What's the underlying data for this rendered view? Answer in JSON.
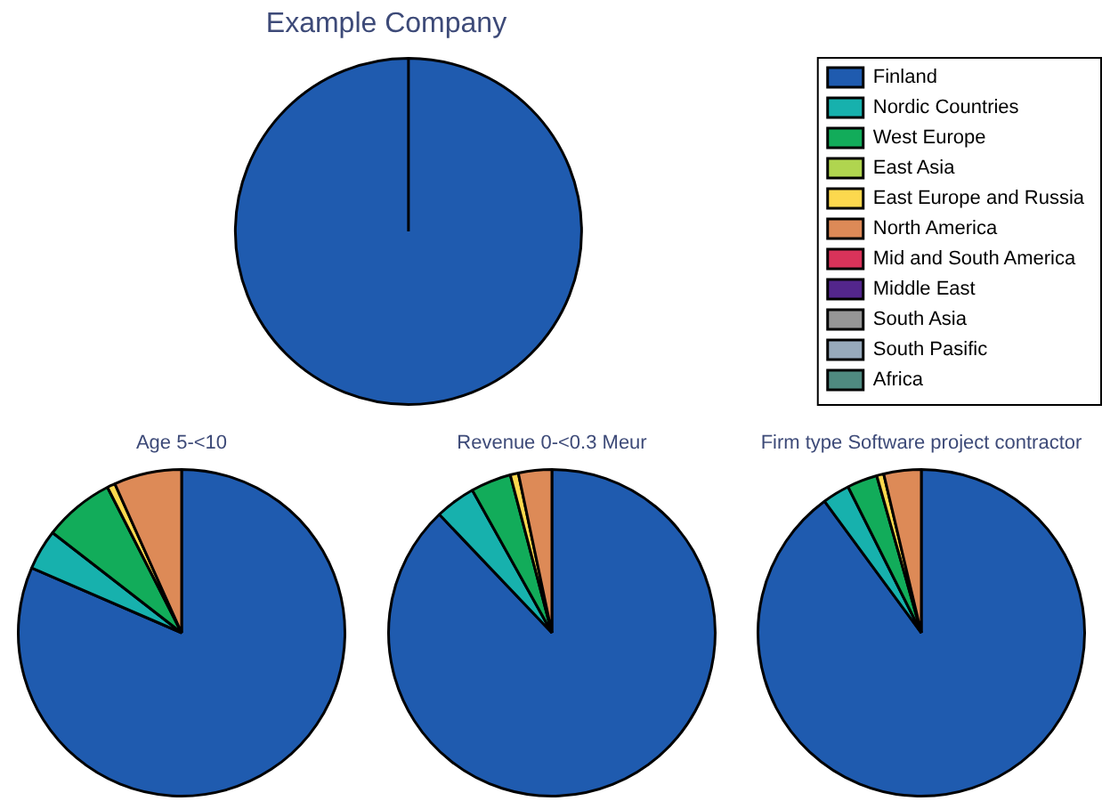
{
  "chart_data": [
    {
      "type": "pie",
      "title": "Example Company",
      "legend": "top right",
      "categories": [
        "Finland",
        "Nordic Countries",
        "West Europe",
        "East Asia",
        "East Europe and Russia",
        "North America",
        "Mid and South America",
        "Middle East",
        "South Asia",
        "South Pasific",
        "Africa"
      ],
      "values": [
        100,
        0,
        0,
        0,
        0,
        0,
        0,
        0,
        0,
        0,
        0
      ],
      "colors": [
        "#1f5baf",
        "#17b1ad",
        "#12ac5a",
        "#b0d54f",
        "#fcd84e",
        "#dd8a57",
        "#d9335a",
        "#53268c",
        "#969696",
        "#97a9bb",
        "#4f8a80"
      ]
    },
    {
      "type": "pie",
      "title": "Age 5-<10",
      "categories": [
        null,
        null,
        null,
        null,
        null,
        null,
        null,
        null,
        null,
        null,
        null
      ],
      "values": [
        81.5,
        4,
        7,
        null,
        0.8,
        6.7,
        0,
        0,
        0,
        0,
        0
      ],
      "colors": [
        "#1f5baf",
        "#17b1ad",
        "#12ac5a",
        "#b0d54f",
        "#fcd84e",
        "#dd8a57",
        "#d9335a",
        "#53268c",
        "#969696",
        "#97a9bb",
        "#4f8a80"
      ]
    },
    {
      "type": "pie",
      "title": "Revenue 0-<0.3 Meur",
      "categories": [
        null,
        null,
        null,
        null,
        null,
        null,
        null,
        null,
        null,
        null,
        null
      ],
      "values": [
        87.9,
        4,
        4,
        null,
        0.8,
        3.3,
        0,
        0,
        0,
        0,
        0
      ],
      "colors": [
        "#1f5baf",
        "#17b1ad",
        "#12ac5a",
        "#b0d54f",
        "#fcd84e",
        "#dd8a57",
        "#d9335a",
        "#53268c",
        "#969696",
        "#97a9bb",
        "#4f8a80"
      ]
    },
    {
      "type": "pie",
      "title": "Firm type Software project contractor",
      "categories": [
        null,
        null,
        null,
        null,
        null,
        null,
        null,
        null,
        null,
        null,
        null
      ],
      "values": [
        89.9,
        2.7,
        3,
        null,
        0.7,
        3.7,
        0,
        0,
        0,
        0,
        0
      ],
      "colors": [
        "#1f5baf",
        "#17b1ad",
        "#12ac5a",
        "#b0d54f",
        "#fcd84e",
        "#dd8a57",
        "#d9335a",
        "#53268c",
        "#969696",
        "#97a9bb",
        "#4f8a80"
      ]
    }
  ]
}
